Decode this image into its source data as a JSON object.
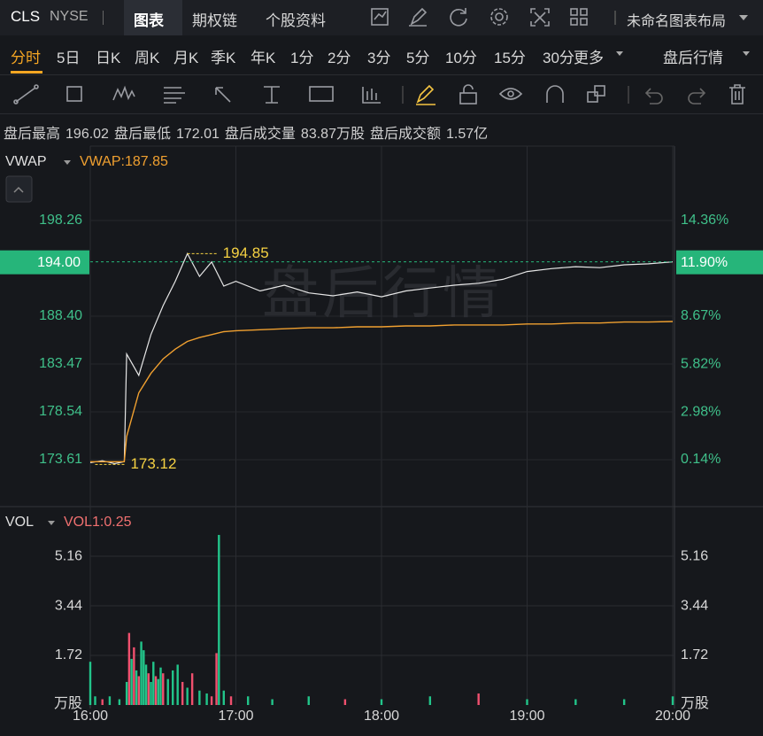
{
  "header": {
    "symbol": "CLS",
    "exchange": "NYSE",
    "tabs": [
      "图表",
      "期权链",
      "个股资料"
    ],
    "layout_name": "未命名图表布局"
  },
  "periods": [
    "分时",
    "5日",
    "日K",
    "周K",
    "月K",
    "季K",
    "年K",
    "1分",
    "2分",
    "3分",
    "5分",
    "10分",
    "15分",
    "30分",
    "更多"
  ],
  "after_hours_button": "盘后行情",
  "info": [
    {
      "label": "盘后最高",
      "value": "196.02"
    },
    {
      "label": "盘后最低",
      "value": "172.01"
    },
    {
      "label": "盘后成交量",
      "value": "83.87万股"
    },
    {
      "label": "盘后成交额",
      "value": "1.57亿"
    }
  ],
  "chart_data": [
    {
      "type": "line",
      "watermark": "盘后行情",
      "x": [
        "16:00",
        "16:05",
        "16:10",
        "16:14",
        "16:15",
        "16:20",
        "16:25",
        "16:30",
        "16:35",
        "16:40",
        "16:45",
        "16:50",
        "16:55",
        "17:00",
        "17:10",
        "17:20",
        "17:30",
        "17:40",
        "17:50",
        "18:00",
        "18:10",
        "18:20",
        "18:30",
        "18:40",
        "18:50",
        "19:00",
        "19:10",
        "19:20",
        "19:30",
        "19:40",
        "19:50",
        "20:00"
      ],
      "series": [
        {
          "color": "#e6e6e6",
          "values": [
            173.3,
            173.5,
            173.2,
            173.4,
            184.5,
            182.3,
            186.5,
            189.5,
            192.0,
            194.85,
            192.5,
            194.0,
            191.5,
            192.0,
            191.0,
            191.6,
            190.8,
            190.5,
            190.9,
            190.4,
            191.0,
            191.3,
            191.6,
            191.8,
            192.2,
            193.0,
            193.3,
            193.5,
            193.4,
            193.7,
            193.8,
            194.0
          ]
        },
        {
          "name": "VWAP",
          "legend_label": "VWAP:187.85",
          "color": "#f0a030",
          "values": [
            173.4,
            173.4,
            173.4,
            173.4,
            176.0,
            180.5,
            182.5,
            184.0,
            185.0,
            185.8,
            186.2,
            186.5,
            186.8,
            186.9,
            187.0,
            187.1,
            187.2,
            187.2,
            187.3,
            187.3,
            187.4,
            187.4,
            187.5,
            187.5,
            187.5,
            187.6,
            187.6,
            187.7,
            187.7,
            187.8,
            187.8,
            187.85
          ]
        }
      ],
      "last": {
        "value": 194.0,
        "label": "194.00",
        "pct_label": "11.90%",
        "color": "#26b57a"
      },
      "annotations": [
        {
          "x": "16:40",
          "value": 194.85
        },
        {
          "x": "16:02",
          "value": 173.12
        }
      ],
      "xlim": [
        "16:00",
        "20:00"
      ],
      "ylim": [
        168.77,
        205.93
      ],
      "yticks": [
        173.61,
        178.54,
        183.47,
        {
          "value": 188.4,
          "label": "188.40"
        },
        198.26
      ],
      "y2lim": [
        -2.65,
        18.78
      ],
      "y2ticks": [
        {
          "value": 0.14,
          "label": "0.14%"
        },
        {
          "value": 2.98,
          "label": "2.98%"
        },
        {
          "value": 5.82,
          "label": "5.82%"
        },
        {
          "value": 8.67,
          "label": "8.67%"
        },
        {
          "value": 14.36,
          "label": "14.36%"
        }
      ],
      "grid": true
    },
    {
      "type": "bar",
      "indicator": "VOL",
      "legend_label": "VOL1:0.25",
      "unit": "万股",
      "x": [
        "16:00",
        "16:02",
        "16:05",
        "16:08",
        "16:12",
        "16:15",
        "16:16",
        "16:17",
        "16:18",
        "16:19",
        "16:20",
        "16:21",
        "16:22",
        "16:23",
        "16:24",
        "16:25",
        "16:26",
        "16:27",
        "16:28",
        "16:29",
        "16:30",
        "16:32",
        "16:34",
        "16:36",
        "16:38",
        "16:40",
        "16:42",
        "16:45",
        "16:48",
        "16:50",
        "16:52",
        "16:53",
        "16:55",
        "16:58",
        "17:05",
        "17:15",
        "17:30",
        "17:45",
        "18:00",
        "18:20",
        "18:40",
        "19:00",
        "19:20",
        "19:40",
        "20:00"
      ],
      "values": [
        1.5,
        0.3,
        0.2,
        0.3,
        0.2,
        0.8,
        2.5,
        1.6,
        2.0,
        1.2,
        1.0,
        2.2,
        1.9,
        1.4,
        1.1,
        0.8,
        1.5,
        1.0,
        0.9,
        1.3,
        1.1,
        0.9,
        1.2,
        1.4,
        0.8,
        0.6,
        1.1,
        0.5,
        0.4,
        0.3,
        1.8,
        5.9,
        0.5,
        0.3,
        0.3,
        0.2,
        0.3,
        0.2,
        0.2,
        0.3,
        0.4,
        0.2,
        0.2,
        0.2,
        0.3
      ],
      "colors": [
        "#22c58a",
        "#22c58a",
        "#f0506e",
        "#22c58a",
        "#22c58a",
        "#22c58a",
        "#f0506e",
        "#22c58a",
        "#f0506e",
        "#22c58a",
        "#f0506e",
        "#22c58a",
        "#22c58a",
        "#22c58a",
        "#f0506e",
        "#22c58a",
        "#22c58a",
        "#f0506e",
        "#22c58a",
        "#22c58a",
        "#f0506e",
        "#22c58a",
        "#22c58a",
        "#22c58a",
        "#f0506e",
        "#22c58a",
        "#f0506e",
        "#22c58a",
        "#22c58a",
        "#f0506e",
        "#f0506e",
        "#22c58a",
        "#22c58a",
        "#f0506e",
        "#22c58a",
        "#22c58a",
        "#22c58a",
        "#f0506e",
        "#22c58a",
        "#22c58a",
        "#f0506e",
        "#22c58a",
        "#22c58a",
        "#22c58a",
        "#22c58a"
      ],
      "xlim": [
        "16:00",
        "20:00"
      ],
      "xticks": [
        "16:00",
        "17:00",
        "18:00",
        "19:00",
        "20:00"
      ],
      "ylim": [
        0,
        6.79
      ],
      "yticks": [
        1.72,
        3.44,
        5.16
      ],
      "grid": true
    }
  ]
}
